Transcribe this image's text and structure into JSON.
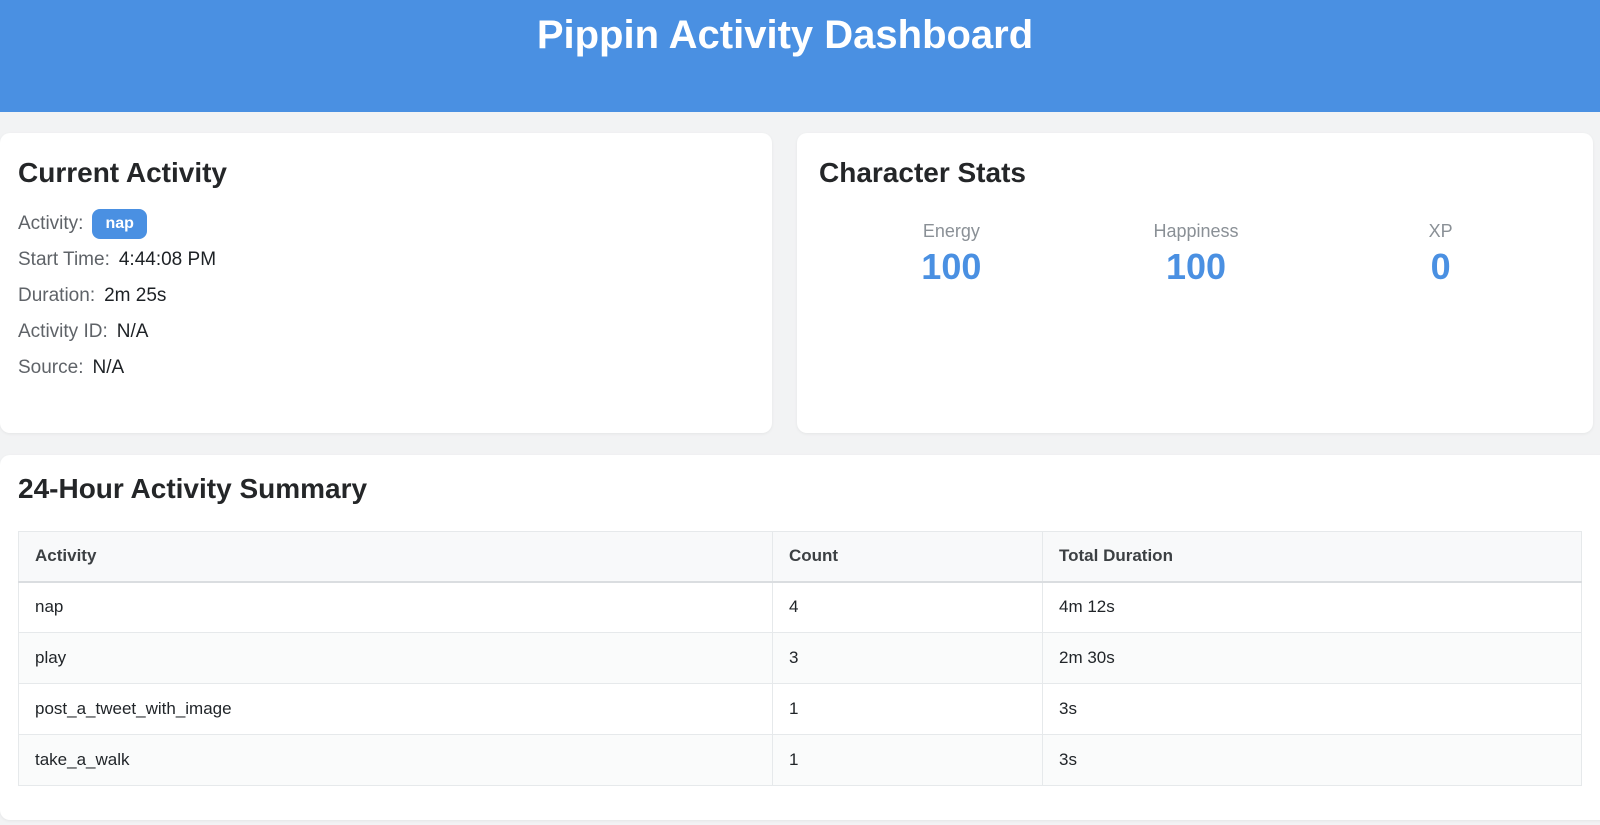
{
  "colors": {
    "primary_blue": "#4a90e2",
    "page_background": "#f2f3f4",
    "card_background": "#ffffff"
  },
  "header": {
    "title": "Pippin Activity Dashboard"
  },
  "current_activity": {
    "title": "Current Activity",
    "fields": [
      {
        "label": "Activity:",
        "value": "nap",
        "style": "badge"
      },
      {
        "label": "Start Time:",
        "value": "4:44:08 PM",
        "style": "text"
      },
      {
        "label": "Duration:",
        "value": "2m 25s",
        "style": "text"
      },
      {
        "label": "Activity ID:",
        "value": "N/A",
        "style": "text"
      },
      {
        "label": "Source:",
        "value": "N/A",
        "style": "text"
      }
    ]
  },
  "character_stats": {
    "title": "Character Stats",
    "stats": [
      {
        "label": "Energy",
        "value": "100"
      },
      {
        "label": "Happiness",
        "value": "100"
      },
      {
        "label": "XP",
        "value": "0"
      }
    ]
  },
  "activity_summary": {
    "title": "24-Hour Activity Summary",
    "table": {
      "columns": [
        "Activity",
        "Count",
        "Total Duration"
      ],
      "rows": [
        [
          "nap",
          "4",
          "4m 12s"
        ],
        [
          "play",
          "3",
          "2m 30s"
        ],
        [
          "post_a_tweet_with_image",
          "1",
          "3s"
        ],
        [
          "take_a_walk",
          "1",
          "3s"
        ]
      ]
    }
  }
}
